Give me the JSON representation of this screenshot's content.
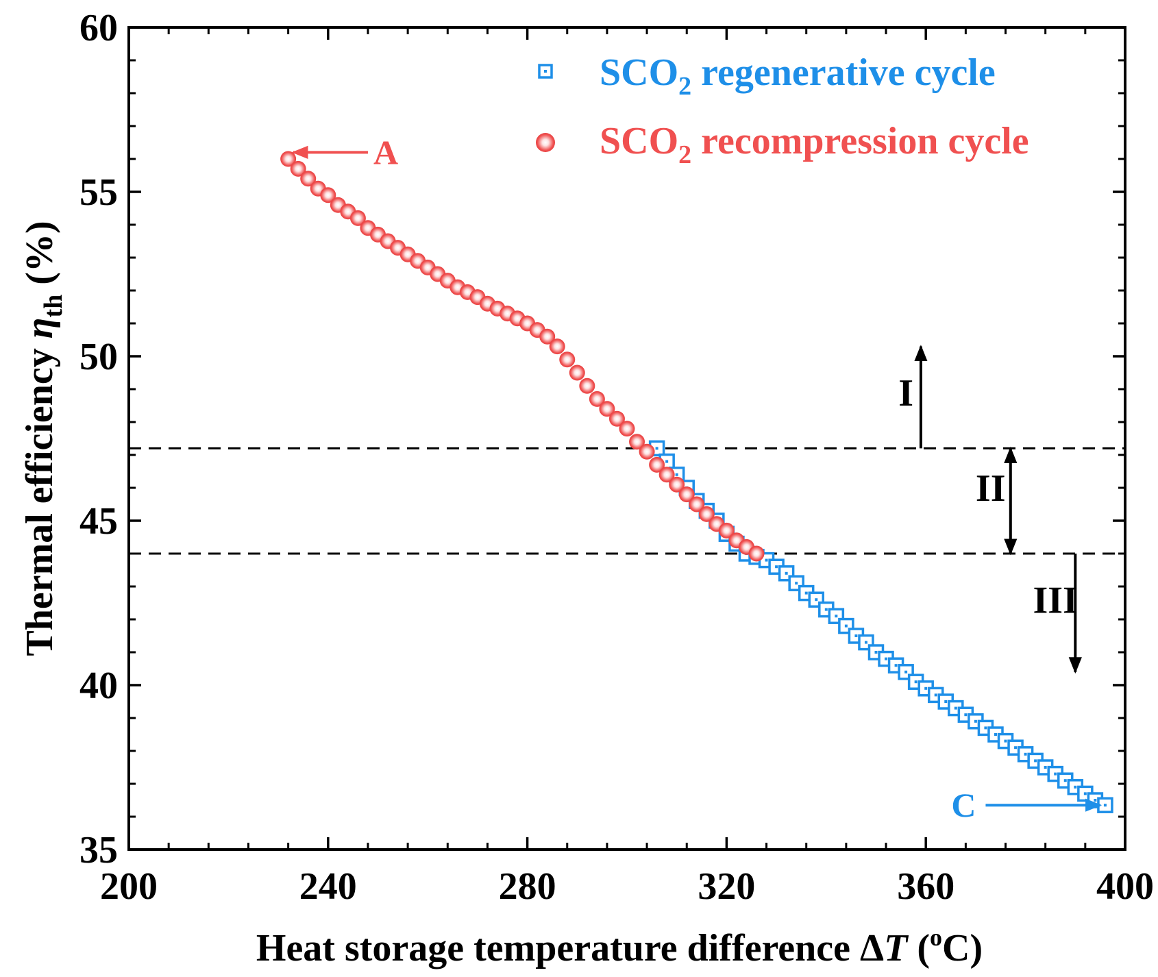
{
  "chart_data": {
    "type": "scatter",
    "xlabel": "Heat storage temperature difference ΔT (°C)",
    "xlabel_parts": {
      "main": "Heat storage temperature difference Δ",
      "var": "T",
      "unit_open": " (",
      "sup": "o",
      "unit_close": "C)"
    },
    "ylabel_parts": {
      "main": "Thermal efficiency ",
      "var": "η",
      "sub": "th",
      "unit": " (%)"
    },
    "xlim": [
      200,
      400
    ],
    "ylim": [
      35,
      60
    ],
    "xticks": [
      200,
      240,
      280,
      320,
      360,
      400
    ],
    "yticks": [
      35,
      40,
      45,
      50,
      55,
      60
    ],
    "x_minor_step": 8,
    "y_minor_step": 1,
    "grid": false,
    "legend_position": "top-right",
    "series": [
      {
        "name": "SCO2 regenerative cycle",
        "legend_parts": {
          "a": "SCO",
          "sub": "2",
          "b": " regenerative cycle"
        },
        "marker": "hollow-square",
        "color": "#1E8FE8",
        "points": [
          [
            306,
            47.2
          ],
          [
            308,
            46.8
          ],
          [
            310,
            46.4
          ],
          [
            312,
            46.0
          ],
          [
            314,
            45.6
          ],
          [
            316,
            45.3
          ],
          [
            318,
            45.0
          ],
          [
            320,
            44.6
          ],
          [
            322,
            44.3
          ],
          [
            324,
            44.0
          ],
          [
            326,
            43.9
          ],
          [
            328,
            43.8
          ],
          [
            330,
            43.6
          ],
          [
            332,
            43.4
          ],
          [
            334,
            43.1
          ],
          [
            336,
            42.8
          ],
          [
            338,
            42.6
          ],
          [
            340,
            42.3
          ],
          [
            342,
            42.1
          ],
          [
            344,
            41.8
          ],
          [
            346,
            41.5
          ],
          [
            348,
            41.3
          ],
          [
            350,
            41.0
          ],
          [
            352,
            40.8
          ],
          [
            354,
            40.6
          ],
          [
            356,
            40.4
          ],
          [
            358,
            40.1
          ],
          [
            360,
            39.9
          ],
          [
            362,
            39.7
          ],
          [
            364,
            39.5
          ],
          [
            366,
            39.3
          ],
          [
            368,
            39.1
          ],
          [
            370,
            38.9
          ],
          [
            372,
            38.7
          ],
          [
            374,
            38.5
          ],
          [
            376,
            38.3
          ],
          [
            378,
            38.1
          ],
          [
            380,
            37.9
          ],
          [
            382,
            37.7
          ],
          [
            384,
            37.5
          ],
          [
            386,
            37.3
          ],
          [
            388,
            37.1
          ],
          [
            390,
            36.9
          ],
          [
            392,
            36.7
          ],
          [
            394,
            36.5
          ],
          [
            396,
            36.35
          ]
        ]
      },
      {
        "name": "SCO2 recompression cycle",
        "legend_parts": {
          "a": "SCO",
          "sub": "2",
          "b": " recompression cycle"
        },
        "marker": "shaded-circle",
        "color": "#F05050",
        "points": [
          [
            232,
            56.0
          ],
          [
            234,
            55.7
          ],
          [
            236,
            55.4
          ],
          [
            238,
            55.1
          ],
          [
            240,
            54.9
          ],
          [
            242,
            54.6
          ],
          [
            244,
            54.4
          ],
          [
            246,
            54.2
          ],
          [
            248,
            53.9
          ],
          [
            250,
            53.7
          ],
          [
            252,
            53.5
          ],
          [
            254,
            53.3
          ],
          [
            256,
            53.1
          ],
          [
            258,
            52.9
          ],
          [
            260,
            52.7
          ],
          [
            262,
            52.5
          ],
          [
            264,
            52.3
          ],
          [
            266,
            52.1
          ],
          [
            268,
            51.95
          ],
          [
            270,
            51.8
          ],
          [
            272,
            51.6
          ],
          [
            274,
            51.45
          ],
          [
            276,
            51.3
          ],
          [
            278,
            51.15
          ],
          [
            280,
            51.0
          ],
          [
            282,
            50.8
          ],
          [
            284,
            50.6
          ],
          [
            286,
            50.3
          ],
          [
            288,
            49.9
          ],
          [
            290,
            49.5
          ],
          [
            292,
            49.1
          ],
          [
            294,
            48.7
          ],
          [
            296,
            48.4
          ],
          [
            298,
            48.1
          ],
          [
            300,
            47.8
          ],
          [
            302,
            47.4
          ],
          [
            304,
            47.1
          ],
          [
            306,
            46.7
          ],
          [
            308,
            46.4
          ],
          [
            310,
            46.1
          ],
          [
            312,
            45.8
          ],
          [
            314,
            45.5
          ],
          [
            316,
            45.2
          ],
          [
            318,
            44.9
          ],
          [
            320,
            44.7
          ],
          [
            322,
            44.4
          ],
          [
            324,
            44.2
          ],
          [
            326,
            44.0
          ]
        ]
      }
    ],
    "reference_lines_y": [
      47.2,
      44.0
    ],
    "region_labels": [
      {
        "text": "I",
        "x": 356,
        "y": 48.5
      },
      {
        "text": "II",
        "x": 373,
        "y": 45.6
      },
      {
        "text": "III",
        "x": 386,
        "y": 42.2
      }
    ],
    "region_arrows": [
      {
        "x": 359,
        "y_from": 47.2,
        "y_to": 50.3,
        "heads": "end"
      },
      {
        "x": 377,
        "y_from": 44.0,
        "y_to": 47.2,
        "heads": "both"
      },
      {
        "x": 390,
        "y_from": 44.0,
        "y_to": 40.4,
        "heads": "end"
      }
    ],
    "point_annotations": [
      {
        "text": "A",
        "x": 236,
        "y": 56.2,
        "arrow_from_x": 248,
        "arrow_to_x": 233,
        "color": "#F05050"
      },
      {
        "text": "C",
        "x": 370,
        "y": 36.35,
        "arrow_from_x": 372,
        "arrow_to_x": 395,
        "color": "#1E8FE8"
      }
    ]
  }
}
